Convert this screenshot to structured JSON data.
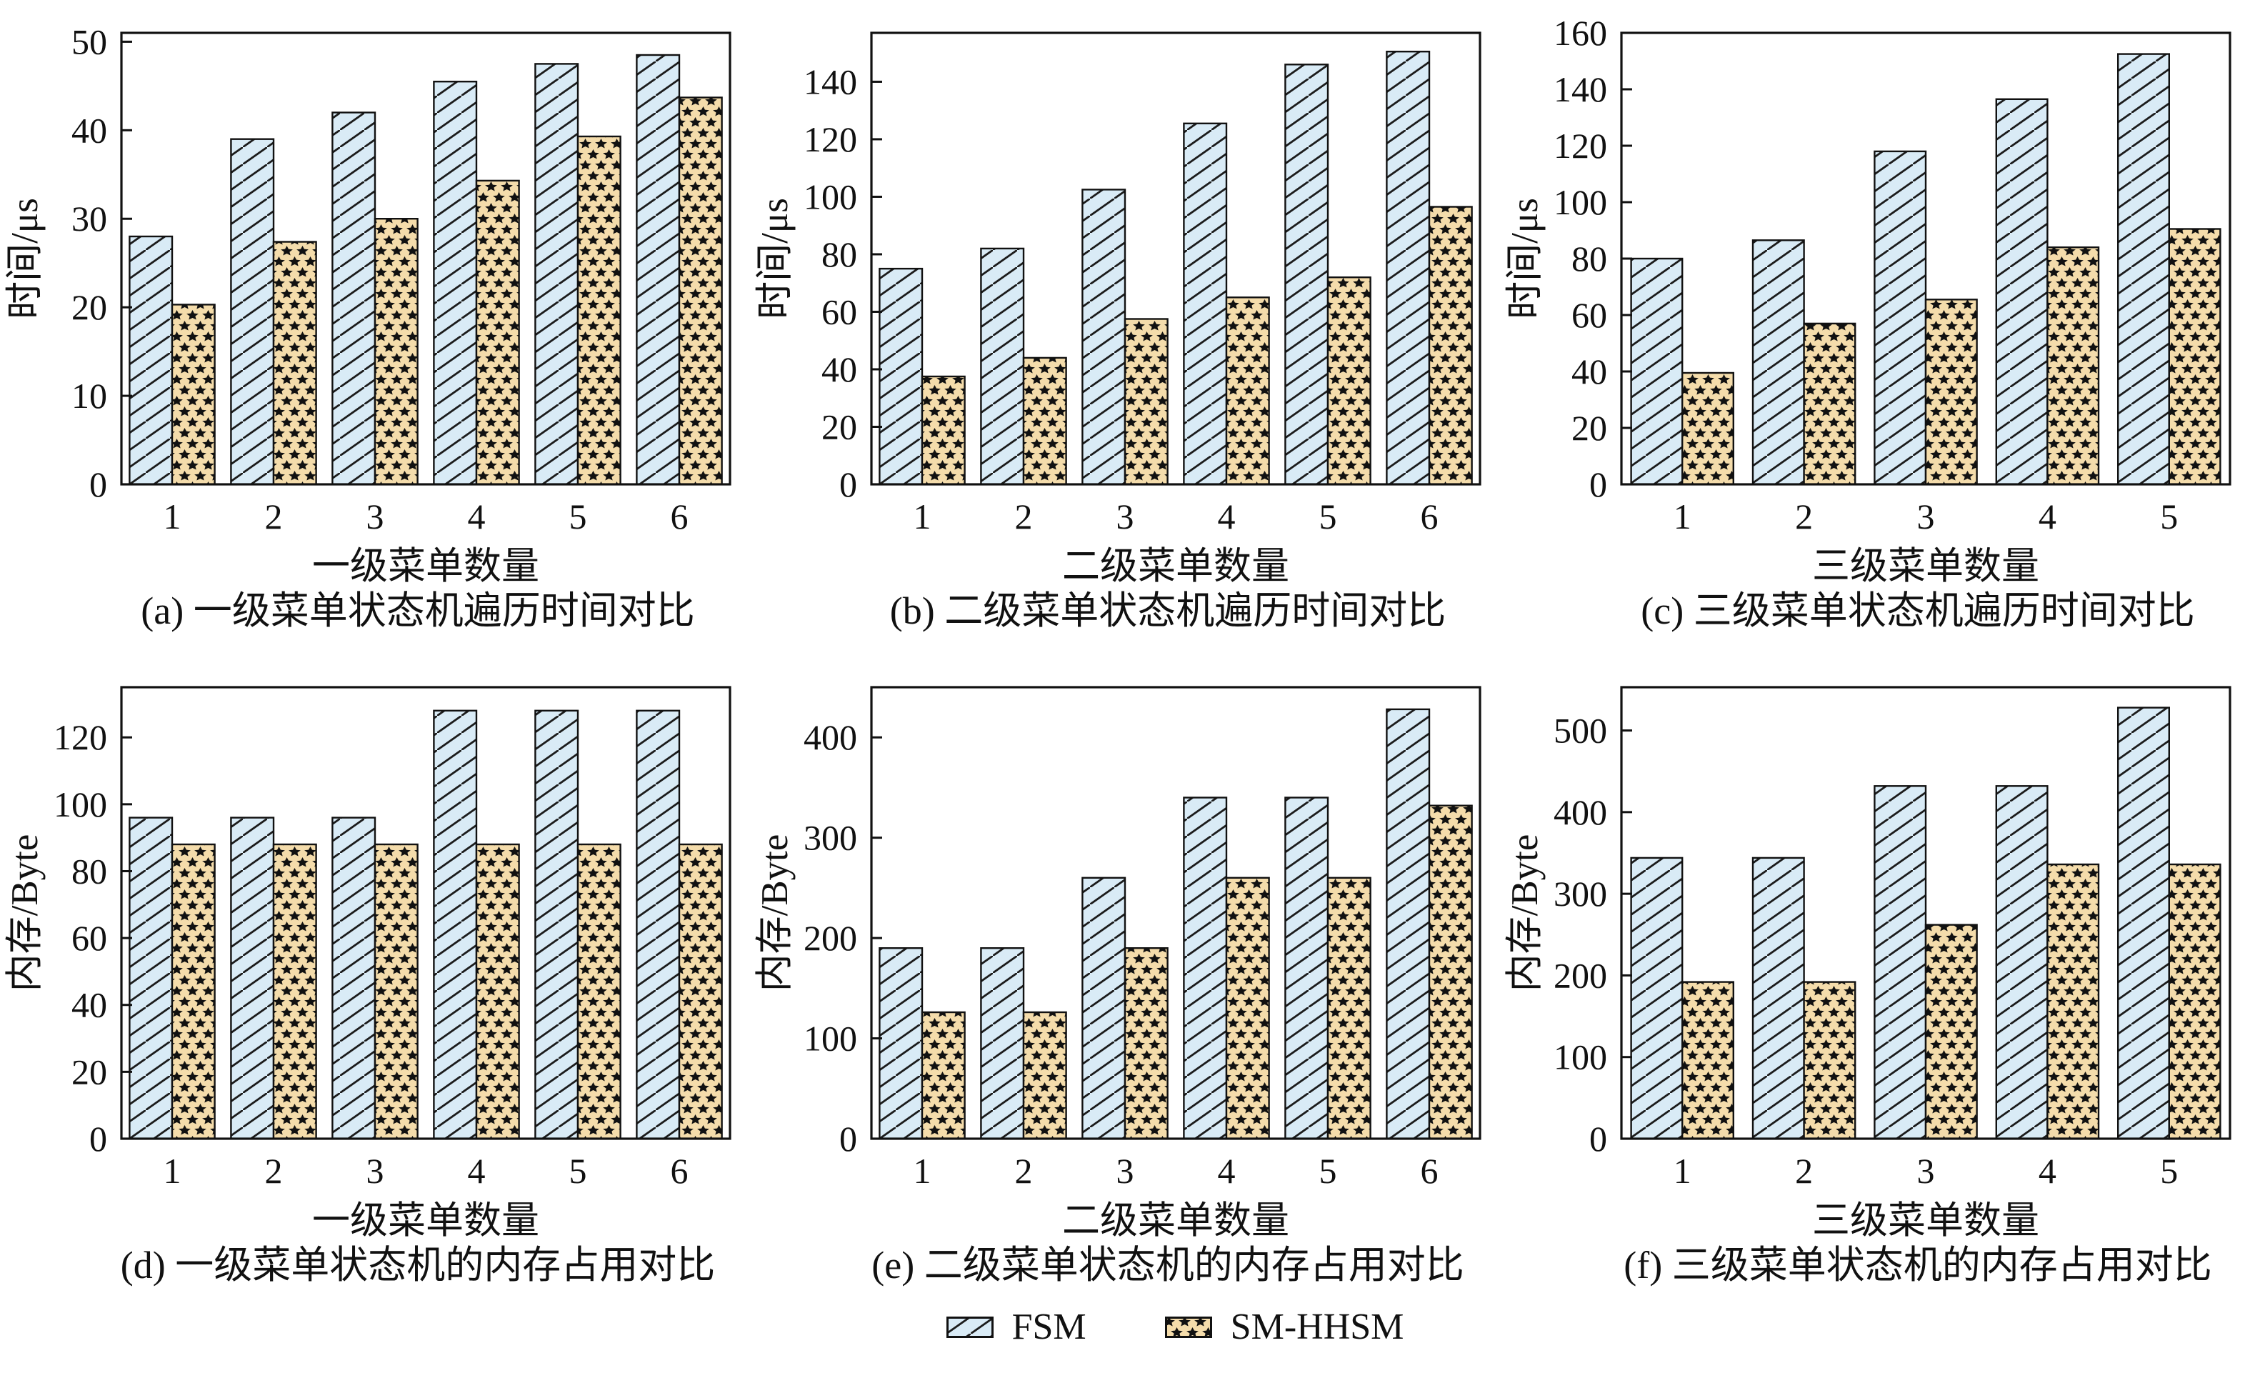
{
  "colors": {
    "fsm_fill": "#d9ebf6",
    "hatch_line": "#1c1c1c",
    "smhhsm_fill": "#f4dcab",
    "star": "#111111",
    "bar_border": "#111111",
    "axis": "#111111",
    "text": "#111111",
    "background": "#ffffff"
  },
  "chart_data": {
    "type": "bar",
    "grid": false,
    "series_names": [
      "FSM",
      "SM-HHSM"
    ],
    "legend": {
      "position": "bottom-center",
      "items": [
        {
          "label": "FSM",
          "pattern": "diagonal-hatch",
          "fill": "#d9ebf6"
        },
        {
          "label": "SM-HHSM",
          "pattern": "black-stars",
          "fill": "#f4dcab"
        }
      ]
    },
    "charts": [
      {
        "id": "a",
        "caption": "(a) 一级菜单状态机遍历时间对比",
        "xlabel": "一级菜单数量",
        "ylabel": "时间/μs",
        "categories": [
          "1",
          "2",
          "3",
          "4",
          "5",
          "6"
        ],
        "ylim": [
          0,
          51
        ],
        "ytick_step": 10,
        "ytick_max": 50,
        "series": [
          {
            "name": "FSM",
            "values": [
              28,
              39,
              42,
              45.5,
              47.5,
              48.5
            ]
          },
          {
            "name": "SM-HHSM",
            "values": [
              20.3,
              27.4,
              30,
              34.3,
              39.3,
              43.7
            ]
          }
        ]
      },
      {
        "id": "b",
        "caption": "(b) 二级菜单状态机遍历时间对比",
        "xlabel": "二级菜单数量",
        "ylabel": "时间/μs",
        "categories": [
          "1",
          "2",
          "3",
          "4",
          "5",
          "6"
        ],
        "ylim": [
          0,
          157
        ],
        "ytick_step": 20,
        "ytick_max": 140,
        "series": [
          {
            "name": "FSM",
            "values": [
              75,
              82,
              102.5,
              125.5,
              146,
              150.5
            ]
          },
          {
            "name": "SM-HHSM",
            "values": [
              37.5,
              44,
              57.5,
              65,
              72,
              96.5
            ]
          }
        ]
      },
      {
        "id": "c",
        "caption": "(c) 三级菜单状态机遍历时间对比",
        "xlabel": "三级菜单数量",
        "ylabel": "时间/μs",
        "categories": [
          "1",
          "2",
          "3",
          "4",
          "5"
        ],
        "ylim": [
          0,
          160
        ],
        "ytick_step": 20,
        "ytick_max": 160,
        "series": [
          {
            "name": "FSM",
            "values": [
              80,
              86.5,
              118,
              136.5,
              152.5
            ]
          },
          {
            "name": "SM-HHSM",
            "values": [
              39.5,
              57,
              65.5,
              84,
              90.5
            ]
          }
        ]
      },
      {
        "id": "d",
        "caption": "(d) 一级菜单状态机的内存占用对比",
        "xlabel": "一级菜单数量",
        "ylabel": "内存/Byte",
        "categories": [
          "1",
          "2",
          "3",
          "4",
          "5",
          "6"
        ],
        "ylim": [
          0,
          135
        ],
        "ytick_step": 20,
        "ytick_max": 120,
        "series": [
          {
            "name": "FSM",
            "values": [
              96,
              96,
              96,
              128,
              128,
              128
            ]
          },
          {
            "name": "SM-HHSM",
            "values": [
              88,
              88,
              88,
              88,
              88,
              88
            ]
          }
        ]
      },
      {
        "id": "e",
        "caption": "(e) 二级菜单状态机的内存占用对比",
        "xlabel": "二级菜单数量",
        "ylabel": "内存/Byte",
        "categories": [
          "1",
          "2",
          "3",
          "4",
          "5",
          "6"
        ],
        "ylim": [
          0,
          450
        ],
        "ytick_step": 100,
        "ytick_max": 400,
        "series": [
          {
            "name": "FSM",
            "values": [
              190,
              190,
              260,
              340,
              340,
              428
            ]
          },
          {
            "name": "SM-HHSM",
            "values": [
              126,
              126,
              190,
              260,
              260,
              332
            ]
          }
        ]
      },
      {
        "id": "f",
        "caption": "(f) 三级菜单状态机的内存占用对比",
        "xlabel": "三级菜单数量",
        "ylabel": "内存/Byte",
        "categories": [
          "1",
          "2",
          "3",
          "4",
          "5"
        ],
        "ylim": [
          0,
          553
        ],
        "ytick_step": 100,
        "ytick_max": 500,
        "series": [
          {
            "name": "FSM",
            "values": [
              344,
              344,
              432,
              432,
              528
            ]
          },
          {
            "name": "SM-HHSM",
            "values": [
              192,
              192,
              262,
              336,
              336
            ]
          }
        ]
      }
    ]
  }
}
